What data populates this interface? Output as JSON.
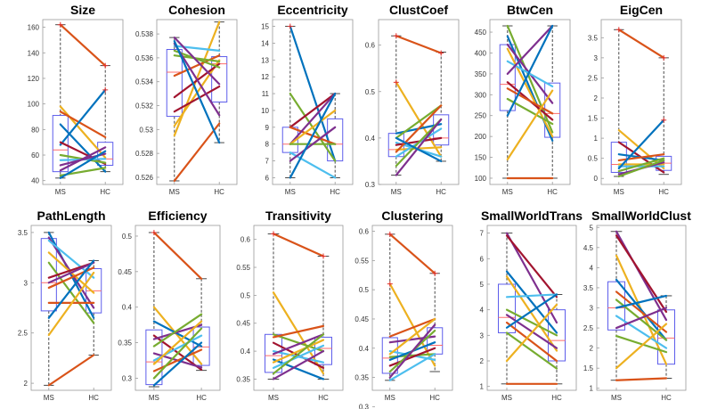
{
  "figure": {
    "line_colors": [
      "#D95319",
      "#0072BD",
      "#EDB120",
      "#7E2F8E",
      "#77AC30",
      "#4DBEEE",
      "#A2142F"
    ],
    "box_color": "#5D5DEB",
    "median_color": "#FF6B6B"
  },
  "chart_data": [
    {
      "type": "box",
      "title": "Size",
      "categories": [
        "MS",
        "HC"
      ],
      "yticks": [
        40,
        60,
        80,
        100,
        120,
        140,
        160
      ],
      "ylim": [
        37,
        166
      ],
      "boxes": [
        {
          "q1": 47,
          "median": 64,
          "q3": 91,
          "wlo": 42,
          "whi": 162
        },
        {
          "q1": 52,
          "median": 57,
          "q3": 70,
          "wlo": 47,
          "whi": 130
        }
      ],
      "series": [
        {
          "ms": 162,
          "hc": 130,
          "color": 0
        },
        {
          "ms": 98,
          "hc": 58,
          "color": 2
        },
        {
          "ms": 94,
          "hc": 74,
          "color": 0
        },
        {
          "ms": 84,
          "hc": 47,
          "color": 1
        },
        {
          "ms": 68,
          "hc": 111,
          "color": 1
        },
        {
          "ms": 70,
          "hc": 53,
          "color": 6
        },
        {
          "ms": 60,
          "hc": 54,
          "color": 4
        },
        {
          "ms": 56,
          "hc": 57,
          "color": 5
        },
        {
          "ms": 52,
          "hc": 61,
          "color": 3
        },
        {
          "ms": 48,
          "hc": 66,
          "color": 3
        },
        {
          "ms": 44,
          "hc": 50,
          "color": 4
        },
        {
          "ms": 42,
          "hc": 63,
          "color": 1
        }
      ]
    },
    {
      "type": "box",
      "title": "Cohesion",
      "categories": [
        "MS",
        "HC"
      ],
      "yticks": [
        0.526,
        0.528,
        0.53,
        0.532,
        0.534,
        0.536,
        0.538
      ],
      "ylim": [
        0.5254,
        0.5392
      ],
      "boxes": [
        {
          "q1": 0.5311,
          "median": 0.5348,
          "q3": 0.5367,
          "wlo": 0.5257,
          "whi": 0.5377
        },
        {
          "q1": 0.5323,
          "median": 0.5355,
          "q3": 0.5361,
          "wlo": 0.5289,
          "whi": 0.539
        }
      ],
      "series": [
        {
          "ms": 0.5257,
          "hc": 0.5305,
          "color": 0
        },
        {
          "ms": 0.5295,
          "hc": 0.539,
          "color": 2
        },
        {
          "ms": 0.5303,
          "hc": 0.5358,
          "color": 2
        },
        {
          "ms": 0.5315,
          "hc": 0.5336,
          "color": 6
        },
        {
          "ms": 0.5327,
          "hc": 0.5355,
          "color": 6
        },
        {
          "ms": 0.5345,
          "hc": 0.5362,
          "color": 0
        },
        {
          "ms": 0.5362,
          "hc": 0.5357,
          "color": 4
        },
        {
          "ms": 0.5366,
          "hc": 0.5352,
          "color": 4
        },
        {
          "ms": 0.537,
          "hc": 0.5366,
          "color": 5
        },
        {
          "ms": 0.5372,
          "hc": 0.5312,
          "color": 3
        },
        {
          "ms": 0.5374,
          "hc": 0.5289,
          "color": 1
        },
        {
          "ms": 0.5377,
          "hc": 0.5338,
          "color": 3
        }
      ]
    },
    {
      "type": "box",
      "title": "Eccentricity",
      "categories": [
        "MS",
        "HC"
      ],
      "yticks": [
        6,
        7,
        8,
        9,
        10,
        11,
        12,
        13,
        14,
        15
      ],
      "ylim": [
        5.6,
        15.4
      ],
      "boxes": [
        {
          "q1": 7.5,
          "median": 8,
          "q3": 9,
          "wlo": 6,
          "whi": 15
        },
        {
          "q1": 7,
          "median": 8,
          "q3": 9.5,
          "wlo": 6,
          "whi": 11
        }
      ],
      "series": [
        {
          "ms": 15,
          "hc": 7,
          "color": 1
        },
        {
          "ms": 11,
          "hc": 7,
          "color": 4
        },
        {
          "ms": 9,
          "hc": 11,
          "color": 6
        },
        {
          "ms": 9,
          "hc": 8,
          "color": 0
        },
        {
          "ms": 8,
          "hc": 11,
          "color": 3
        },
        {
          "ms": 8,
          "hc": 10,
          "color": 2
        },
        {
          "ms": 8,
          "hc": 8,
          "color": 4
        },
        {
          "ms": 7.5,
          "hc": 6,
          "color": 5
        },
        {
          "ms": 7,
          "hc": 9,
          "color": 3
        },
        {
          "ms": 6,
          "hc": 11,
          "color": 1
        }
      ]
    },
    {
      "type": "box",
      "title": "ClustCoef",
      "categories": [
        "MS",
        "HC"
      ],
      "yticks": [
        0.3,
        0.4,
        0.5,
        0.6
      ],
      "ylim": [
        0.3,
        0.655
      ],
      "boxes": [
        {
          "q1": 0.36,
          "median": 0.375,
          "q3": 0.41,
          "wlo": 0.32,
          "whi": 0.62
        },
        {
          "q1": 0.385,
          "median": 0.4,
          "q3": 0.45,
          "wlo": 0.35,
          "whi": 0.585
        }
      ],
      "series": [
        {
          "ms": 0.62,
          "hc": 0.583,
          "color": 0
        },
        {
          "ms": 0.52,
          "hc": 0.36,
          "color": 2
        },
        {
          "ms": 0.41,
          "hc": 0.43,
          "color": 1
        },
        {
          "ms": 0.4,
          "hc": 0.47,
          "color": 4
        },
        {
          "ms": 0.39,
          "hc": 0.36,
          "color": 5
        },
        {
          "ms": 0.385,
          "hc": 0.4,
          "color": 6
        },
        {
          "ms": 0.375,
          "hc": 0.38,
          "color": 2
        },
        {
          "ms": 0.37,
          "hc": 0.47,
          "color": 0
        },
        {
          "ms": 0.36,
          "hc": 0.42,
          "color": 5
        },
        {
          "ms": 0.34,
          "hc": 0.44,
          "color": 4
        },
        {
          "ms": 0.32,
          "hc": 0.44,
          "color": 3
        },
        {
          "ms": 0.4,
          "hc": 0.35,
          "color": 1
        }
      ]
    },
    {
      "type": "box",
      "title": "BtwCen",
      "categories": [
        "MS",
        "HC"
      ],
      "yticks": [
        100,
        150,
        200,
        250,
        300,
        350,
        400,
        450
      ],
      "ylim": [
        85,
        480
      ],
      "boxes": [
        {
          "q1": 262,
          "median": 325,
          "q3": 420,
          "wlo": 100,
          "whi": 465
        },
        {
          "q1": 198,
          "median": 255,
          "q3": 328,
          "wlo": 100,
          "whi": 465
        }
      ],
      "series": [
        {
          "ms": 465,
          "hc": 210,
          "color": 4
        },
        {
          "ms": 440,
          "hc": 190,
          "color": 1
        },
        {
          "ms": 420,
          "hc": 280,
          "color": 3
        },
        {
          "ms": 410,
          "hc": 200,
          "color": 2
        },
        {
          "ms": 380,
          "hc": 320,
          "color": 5
        },
        {
          "ms": 350,
          "hc": 465,
          "color": 3
        },
        {
          "ms": 330,
          "hc": 240,
          "color": 6
        },
        {
          "ms": 315,
          "hc": 255,
          "color": 0
        },
        {
          "ms": 290,
          "hc": 230,
          "color": 4
        },
        {
          "ms": 250,
          "hc": 465,
          "color": 1
        },
        {
          "ms": 145,
          "hc": 310,
          "color": 2
        },
        {
          "ms": 100,
          "hc": 100,
          "color": 0
        }
      ]
    },
    {
      "type": "box",
      "title": "EigCen",
      "categories": [
        "MS",
        "HC"
      ],
      "yticks": [
        0,
        0.5,
        1,
        1.5,
        2,
        2.5,
        3,
        3.5
      ],
      "ylim": [
        -0.15,
        3.95
      ],
      "boxes": [
        {
          "q1": 0.15,
          "median": 0.35,
          "q3": 0.9,
          "wlo": 0.05,
          "whi": 3.7
        },
        {
          "q1": 0.2,
          "median": 0.38,
          "q3": 0.55,
          "wlo": 0.1,
          "whi": 3.0
        }
      ],
      "series": [
        {
          "ms": 3.7,
          "hc": 3.0,
          "color": 0
        },
        {
          "ms": 1.2,
          "hc": 0.25,
          "color": 2
        },
        {
          "ms": 0.9,
          "hc": 0.15,
          "color": 6
        },
        {
          "ms": 0.6,
          "hc": 0.45,
          "color": 1
        },
        {
          "ms": 0.45,
          "hc": 0.6,
          "color": 0
        },
        {
          "ms": 0.35,
          "hc": 0.35,
          "color": 2
        },
        {
          "ms": 0.3,
          "hc": 0.3,
          "color": 5
        },
        {
          "ms": 0.25,
          "hc": 1.45,
          "color": 1
        },
        {
          "ms": 0.18,
          "hc": 0.5,
          "color": 4
        },
        {
          "ms": 0.1,
          "hc": 0.4,
          "color": 3
        },
        {
          "ms": 0.05,
          "hc": 0.45,
          "color": 4
        }
      ]
    },
    {
      "type": "box",
      "title": "PathLength",
      "categories": [
        "MS",
        "HC"
      ],
      "yticks": [
        2,
        2.5,
        3,
        3.5
      ],
      "ylim": [
        1.93,
        3.57
      ],
      "boxes": [
        {
          "q1": 2.72,
          "median": 3.0,
          "q3": 3.44,
          "wlo": 1.98,
          "whi": 3.5
        },
        {
          "q1": 2.7,
          "median": 2.92,
          "q3": 3.14,
          "wlo": 2.28,
          "whi": 3.22
        }
      ],
      "series": [
        {
          "ms": 3.5,
          "hc": 2.65,
          "color": 1
        },
        {
          "ms": 3.45,
          "hc": 2.75,
          "color": 3
        },
        {
          "ms": 3.42,
          "hc": 3.05,
          "color": 5
        },
        {
          "ms": 3.3,
          "hc": 2.9,
          "color": 2
        },
        {
          "ms": 3.2,
          "hc": 2.6,
          "color": 4
        },
        {
          "ms": 3.05,
          "hc": 3.2,
          "color": 6
        },
        {
          "ms": 3.0,
          "hc": 3.2,
          "color": 3
        },
        {
          "ms": 2.95,
          "hc": 3.15,
          "color": 0
        },
        {
          "ms": 2.8,
          "hc": 2.8,
          "color": 0
        },
        {
          "ms": 2.65,
          "hc": 3.22,
          "color": 1
        },
        {
          "ms": 2.48,
          "hc": 3.1,
          "color": 2
        },
        {
          "ms": 1.98,
          "hc": 2.28,
          "color": 0
        }
      ]
    },
    {
      "type": "box",
      "title": "Efficiency",
      "categories": [
        "MS",
        "HC"
      ],
      "yticks": [
        0.3,
        0.35,
        0.4,
        0.45,
        0.5
      ],
      "ylim": [
        0.283,
        0.515
      ],
      "boxes": [
        {
          "q1": 0.291,
          "median": 0.323,
          "q3": 0.368,
          "wlo": 0.288,
          "whi": 0.505
        },
        {
          "q1": 0.318,
          "median": 0.344,
          "q3": 0.372,
          "wlo": 0.311,
          "whi": 0.44
        }
      ],
      "series": [
        {
          "ms": 0.505,
          "hc": 0.44,
          "color": 0
        },
        {
          "ms": 0.4,
          "hc": 0.32,
          "color": 2
        },
        {
          "ms": 0.38,
          "hc": 0.345,
          "color": 1
        },
        {
          "ms": 0.36,
          "hc": 0.312,
          "color": 6
        },
        {
          "ms": 0.355,
          "hc": 0.375,
          "color": 3
        },
        {
          "ms": 0.345,
          "hc": 0.39,
          "color": 4
        },
        {
          "ms": 0.335,
          "hc": 0.315,
          "color": 3
        },
        {
          "ms": 0.325,
          "hc": 0.36,
          "color": 5
        },
        {
          "ms": 0.32,
          "hc": 0.38,
          "color": 2
        },
        {
          "ms": 0.31,
          "hc": 0.34,
          "color": 0
        },
        {
          "ms": 0.3,
          "hc": 0.37,
          "color": 4
        },
        {
          "ms": 0.29,
          "hc": 0.35,
          "color": 1
        }
      ]
    },
    {
      "type": "box",
      "title": "Transitivity",
      "categories": [
        "MS",
        "HC"
      ],
      "yticks": [
        0.35,
        0.4,
        0.45,
        0.5,
        0.55,
        0.6
      ],
      "ylim": [
        0.33,
        0.625
      ],
      "boxes": [
        {
          "q1": 0.362,
          "median": 0.392,
          "q3": 0.43,
          "wlo": 0.35,
          "whi": 0.61
        },
        {
          "q1": 0.376,
          "median": 0.405,
          "q3": 0.425,
          "wlo": 0.35,
          "whi": 0.57
        }
      ],
      "series": [
        {
          "ms": 0.61,
          "hc": 0.57,
          "color": 0
        },
        {
          "ms": 0.505,
          "hc": 0.36,
          "color": 2
        },
        {
          "ms": 0.43,
          "hc": 0.4,
          "color": 4
        },
        {
          "ms": 0.425,
          "hc": 0.445,
          "color": 0
        },
        {
          "ms": 0.415,
          "hc": 0.37,
          "color": 6
        },
        {
          "ms": 0.4,
          "hc": 0.38,
          "color": 5
        },
        {
          "ms": 0.395,
          "hc": 0.43,
          "color": 3
        },
        {
          "ms": 0.385,
          "hc": 0.35,
          "color": 1
        },
        {
          "ms": 0.38,
          "hc": 0.42,
          "color": 2
        },
        {
          "ms": 0.37,
          "hc": 0.41,
          "color": 5
        },
        {
          "ms": 0.36,
          "hc": 0.43,
          "color": 4
        },
        {
          "ms": 0.35,
          "hc": 0.4,
          "color": 3
        }
      ]
    },
    {
      "type": "box",
      "title": "Clustering",
      "categories": [
        "MS",
        "HC"
      ],
      "yticks": [
        0.3,
        0.35,
        0.4,
        0.45,
        0.5,
        0.55,
        0.6
      ],
      "ylim": [
        0.328,
        0.61
      ],
      "boxes": [
        {
          "q1": 0.357,
          "median": 0.383,
          "q3": 0.418,
          "wlo": 0.345,
          "whi": 0.595
        },
        {
          "q1": 0.39,
          "median": 0.405,
          "q3": 0.435,
          "wlo": 0.36,
          "whi": 0.528
        }
      ],
      "series": [
        {
          "ms": 0.595,
          "hc": 0.528,
          "color": 0
        },
        {
          "ms": 0.51,
          "hc": 0.37,
          "color": 2
        },
        {
          "ms": 0.42,
          "hc": 0.45,
          "color": 0
        },
        {
          "ms": 0.41,
          "hc": 0.42,
          "color": 3
        },
        {
          "ms": 0.395,
          "hc": 0.38,
          "color": 5
        },
        {
          "ms": 0.39,
          "hc": 0.45,
          "color": 2
        },
        {
          "ms": 0.385,
          "hc": 0.39,
          "color": 4
        },
        {
          "ms": 0.38,
          "hc": 0.41,
          "color": 1
        },
        {
          "ms": 0.37,
          "hc": 0.4,
          "color": 6
        },
        {
          "ms": 0.36,
          "hc": 0.43,
          "color": 4
        },
        {
          "ms": 0.35,
          "hc": 0.44,
          "color": 3
        },
        {
          "ms": 0.345,
          "hc": 0.39,
          "color": 5
        }
      ]
    },
    {
      "type": "box",
      "title": "SmallWorldTrans",
      "categories": [
        "MS",
        "HC"
      ],
      "yticks": [
        1,
        2,
        3,
        4,
        5,
        6,
        7
      ],
      "ylim": [
        0.85,
        7.3
      ],
      "boxes": [
        {
          "q1": 3.1,
          "median": 3.7,
          "q3": 5.0,
          "wlo": 1.1,
          "whi": 7.0
        },
        {
          "q1": 2.0,
          "median": 2.8,
          "q3": 4.0,
          "wlo": 1.1,
          "whi": 4.6
        }
      ],
      "series": [
        {
          "ms": 7.0,
          "hc": 3.5,
          "color": 3
        },
        {
          "ms": 6.9,
          "hc": 4.5,
          "color": 6
        },
        {
          "ms": 5.5,
          "hc": 3.1,
          "color": 1
        },
        {
          "ms": 5.3,
          "hc": 2.4,
          "color": 2
        },
        {
          "ms": 4.5,
          "hc": 4.6,
          "color": 5
        },
        {
          "ms": 4.0,
          "hc": 3.0,
          "color": 4
        },
        {
          "ms": 3.8,
          "hc": 2.5,
          "color": 3
        },
        {
          "ms": 3.5,
          "hc": 2.0,
          "color": 0
        },
        {
          "ms": 3.3,
          "hc": 4.6,
          "color": 1
        },
        {
          "ms": 3.1,
          "hc": 1.7,
          "color": 4
        },
        {
          "ms": 2.0,
          "hc": 4.2,
          "color": 2
        },
        {
          "ms": 1.1,
          "hc": 1.1,
          "color": 0
        }
      ]
    },
    {
      "type": "box",
      "title": "SmallWorldClust",
      "categories": [
        "MS",
        "HC"
      ],
      "yticks": [
        1,
        1.5,
        2,
        2.5,
        3,
        3.5,
        4,
        4.5,
        5
      ],
      "ylim": [
        0.95,
        5.05
      ],
      "boxes": [
        {
          "q1": 2.45,
          "median": 3.0,
          "q3": 3.65,
          "wlo": 1.2,
          "whi": 4.9
        },
        {
          "q1": 1.6,
          "median": 2.25,
          "q3": 2.95,
          "wlo": 1.25,
          "whi": 3.3
        }
      ],
      "series": [
        {
          "ms": 4.9,
          "hc": 2.7,
          "color": 3
        },
        {
          "ms": 4.8,
          "hc": 2.9,
          "color": 6
        },
        {
          "ms": 4.3,
          "hc": 1.6,
          "color": 2
        },
        {
          "ms": 3.7,
          "hc": 2.2,
          "color": 1
        },
        {
          "ms": 3.4,
          "hc": 2.4,
          "color": 0
        },
        {
          "ms": 3.2,
          "hc": 2.2,
          "color": 4
        },
        {
          "ms": 3.0,
          "hc": 3.3,
          "color": 1
        },
        {
          "ms": 2.8,
          "hc": 2.0,
          "color": 5
        },
        {
          "ms": 2.5,
          "hc": 3.0,
          "color": 3
        },
        {
          "ms": 2.3,
          "hc": 1.9,
          "color": 4
        },
        {
          "ms": 1.5,
          "hc": 2.6,
          "color": 2
        },
        {
          "ms": 1.2,
          "hc": 1.25,
          "color": 0
        }
      ]
    }
  ]
}
